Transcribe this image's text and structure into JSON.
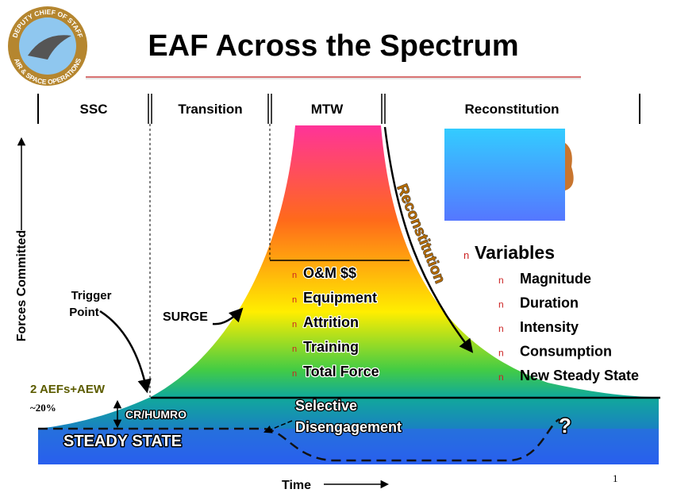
{
  "logo": {
    "top_text": "DEPUTY CHIEF OF STAFF",
    "bottom_text": "AIR & SPACE OPERATIONS"
  },
  "title": "EAF Across the Spectrum",
  "phases": [
    "SSC",
    "Transition",
    "MTW",
    "Reconstitution"
  ],
  "y_axis_label": "Forces Committed",
  "x_axis_label": "Time",
  "trigger_point": [
    "Trigger",
    "Point"
  ],
  "surge": "SURGE",
  "reconstitution": "Reconstitution",
  "baseline_label": "2 AEFs+AEW",
  "baseline_percent": "~20%",
  "cr_humro": "CR/HUMRO",
  "steady_state": "STEADY STATE",
  "selective_disengagement": [
    "Selective",
    "Disengagement"
  ],
  "question": "?",
  "cost_items": [
    "O&M $$",
    "Equipment",
    "Attrition",
    "Training",
    "Total Force"
  ],
  "variables": {
    "heading": "Variables",
    "items": [
      "Magnitude",
      "Duration",
      "Intensity",
      "Consumption",
      "New Steady State"
    ]
  },
  "page_number": "1"
}
